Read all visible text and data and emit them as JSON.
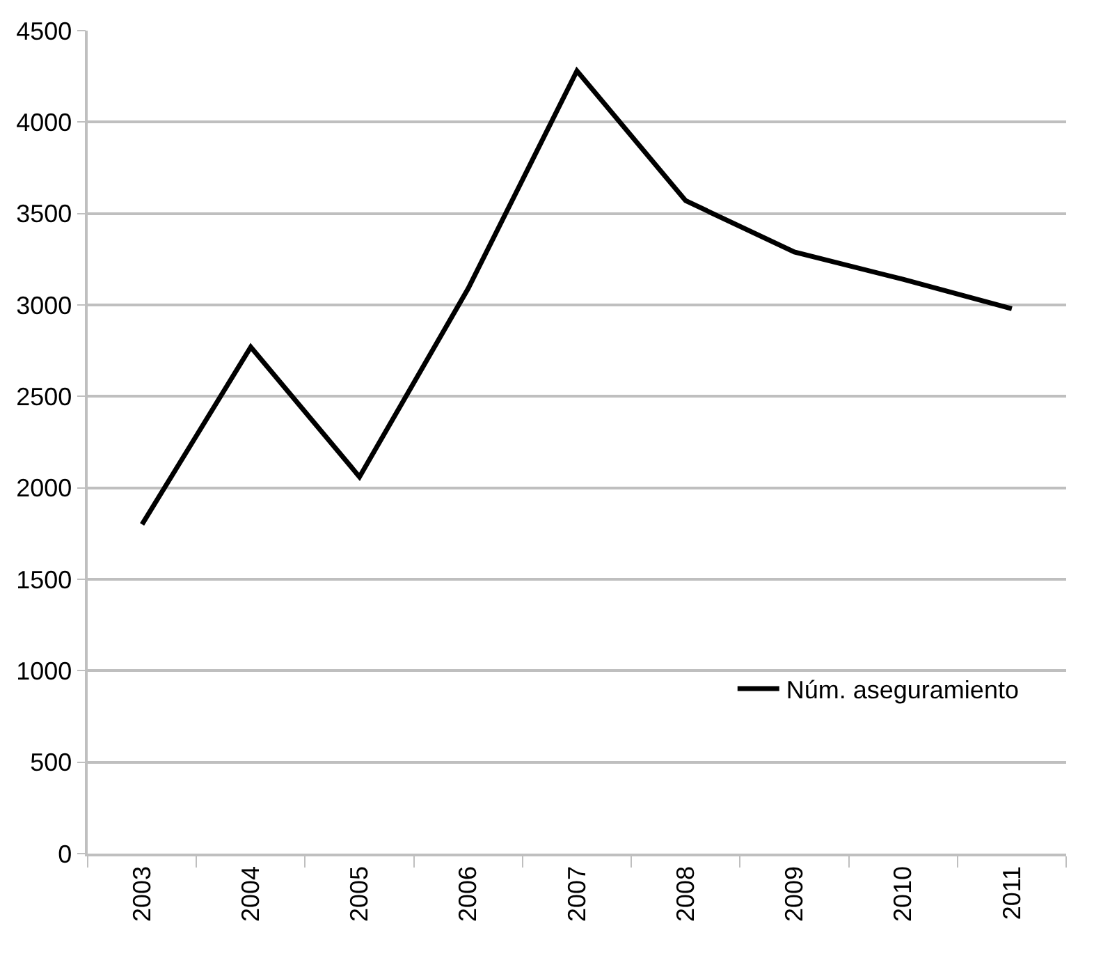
{
  "chart_data": {
    "type": "line",
    "categories": [
      "2003",
      "2004",
      "2005",
      "2006",
      "2007",
      "2008",
      "2009",
      "2010",
      "2011"
    ],
    "series": [
      {
        "name": "Núm. aseguramiento",
        "color": "#000000",
        "values": [
          1800,
          2770,
          2060,
          3090,
          4280,
          3570,
          3290,
          3140,
          2980
        ]
      }
    ],
    "ylim": [
      0,
      4500
    ],
    "yticks": [
      0,
      500,
      1000,
      1500,
      2000,
      2500,
      3000,
      3500,
      4000,
      4500
    ],
    "grid": "y",
    "legend": "bottom right",
    "marker": "none",
    "line_style": "solid"
  }
}
